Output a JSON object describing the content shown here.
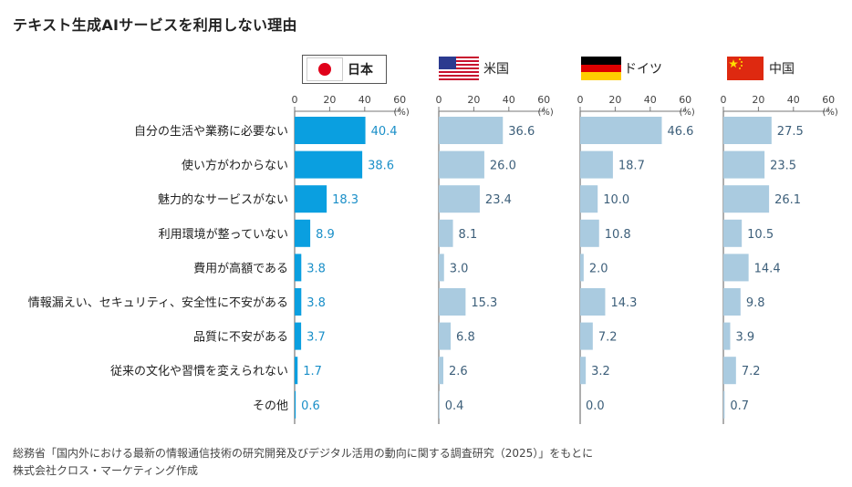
{
  "title": "テキスト生成AIサービスを利用しない理由",
  "legend": [
    {
      "label": "日本",
      "flag": "japan-flag-icon"
    },
    {
      "label": "米国",
      "flag": "us-flag-icon"
    },
    {
      "label": "ドイツ",
      "flag": "germany-flag-icon"
    },
    {
      "label": "中国",
      "flag": "china-flag-icon"
    }
  ],
  "source": {
    "line1": "総務省「国内外における最新の情報通信技術の研究開発及びデジタル活用の動向に関する調査研究（2025）」をもとに",
    "line2": "株式会社クロス・マーケティング作成"
  },
  "colors": {
    "japan_bar": "#0a9fe0",
    "japan_label": "#1a8fc8",
    "other_bar": "#aacbe0",
    "other_label": "#3d5f7a",
    "axis": "#777777",
    "grid": "#d8d8d8"
  },
  "chart_data": {
    "type": "bar",
    "orientation": "horizontal",
    "unit": "(%)",
    "xlim": [
      0,
      60
    ],
    "ticks": [
      0,
      20,
      40,
      60
    ],
    "categories": [
      "自分の生活や業務に必要ない",
      "使い方がわからない",
      "魅力的なサービスがない",
      "利用環境が整っていない",
      "費用が高額である",
      "情報漏えい、セキュリティ、安全性に不安がある",
      "品質に不安がある",
      "従来の文化や習慣を変えられない",
      "その他"
    ],
    "series": [
      {
        "name": "日本",
        "values": [
          40.4,
          38.6,
          18.3,
          8.9,
          3.8,
          3.8,
          3.7,
          1.7,
          0.6
        ],
        "labels": [
          "40.4",
          "38.6",
          "18.3",
          "8.9",
          "3.8",
          "3.8",
          "3.7",
          "1.7",
          "0.6"
        ]
      },
      {
        "name": "米国",
        "values": [
          36.6,
          26.0,
          23.4,
          8.1,
          3.0,
          15.3,
          6.8,
          2.6,
          0.4
        ],
        "labels": [
          "36.6",
          "26.0",
          "23.4",
          "8.1",
          "3.0",
          "15.3",
          "6.8",
          "2.6",
          "0.4"
        ]
      },
      {
        "name": "ドイツ",
        "values": [
          46.6,
          18.7,
          10.0,
          10.8,
          2.0,
          14.3,
          7.2,
          3.2,
          0.0
        ],
        "labels": [
          "46.6",
          "18.7",
          "10.0",
          "10.8",
          "2.0",
          "14.3",
          "7.2",
          "3.2",
          "0.0"
        ]
      },
      {
        "name": "中国",
        "values": [
          27.5,
          23.5,
          26.1,
          10.5,
          14.4,
          9.8,
          3.9,
          7.2,
          0.7
        ],
        "labels": [
          "27.5",
          "23.5",
          "26.1",
          "10.5",
          "14.4",
          "9.8",
          "3.9",
          "7.2",
          "0.7"
        ]
      }
    ]
  }
}
